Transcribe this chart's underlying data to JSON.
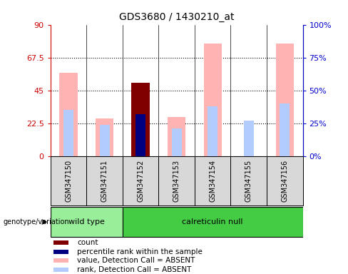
{
  "title": "GDS3680 / 1430210_at",
  "samples": [
    "GSM347150",
    "GSM347151",
    "GSM347152",
    "GSM347153",
    "GSM347154",
    "GSM347155",
    "GSM347156"
  ],
  "value_absent": [
    57,
    26,
    0,
    27,
    77,
    0,
    77
  ],
  "rank_absent": [
    35,
    24,
    0,
    21,
    38,
    27,
    40
  ],
  "count_value": [
    0,
    0,
    50,
    0,
    0,
    0,
    0
  ],
  "percentile_rank": [
    0,
    0,
    32,
    0,
    0,
    0,
    0
  ],
  "wt_count": 2,
  "cn_count": 5,
  "ylim_left": [
    0,
    90
  ],
  "ylim_right": [
    0,
    100
  ],
  "yticks_left": [
    0,
    22.5,
    45,
    67.5,
    90
  ],
  "yticks_right": [
    0,
    25,
    50,
    75,
    100
  ],
  "ytick_labels_left": [
    "0",
    "22.5",
    "45",
    "67.5",
    "90"
  ],
  "ytick_labels_right": [
    "0%",
    "25%",
    "50%",
    "75%",
    "100%"
  ],
  "color_value_absent": "#ffb3b3",
  "color_rank_absent": "#b3ccff",
  "color_count": "#800000",
  "color_percentile": "#000080",
  "color_wt": "#99ee99",
  "color_cn": "#44cc44",
  "color_left_axis": "#cc0000",
  "color_right_axis": "#0000cc",
  "color_sample_bg": "#d8d8d8",
  "legend_items": [
    {
      "label": "count",
      "color": "#800000"
    },
    {
      "label": "percentile rank within the sample",
      "color": "#000080"
    },
    {
      "label": "value, Detection Call = ABSENT",
      "color": "#ffb3b3"
    },
    {
      "label": "rank, Detection Call = ABSENT",
      "color": "#b3ccff"
    }
  ]
}
